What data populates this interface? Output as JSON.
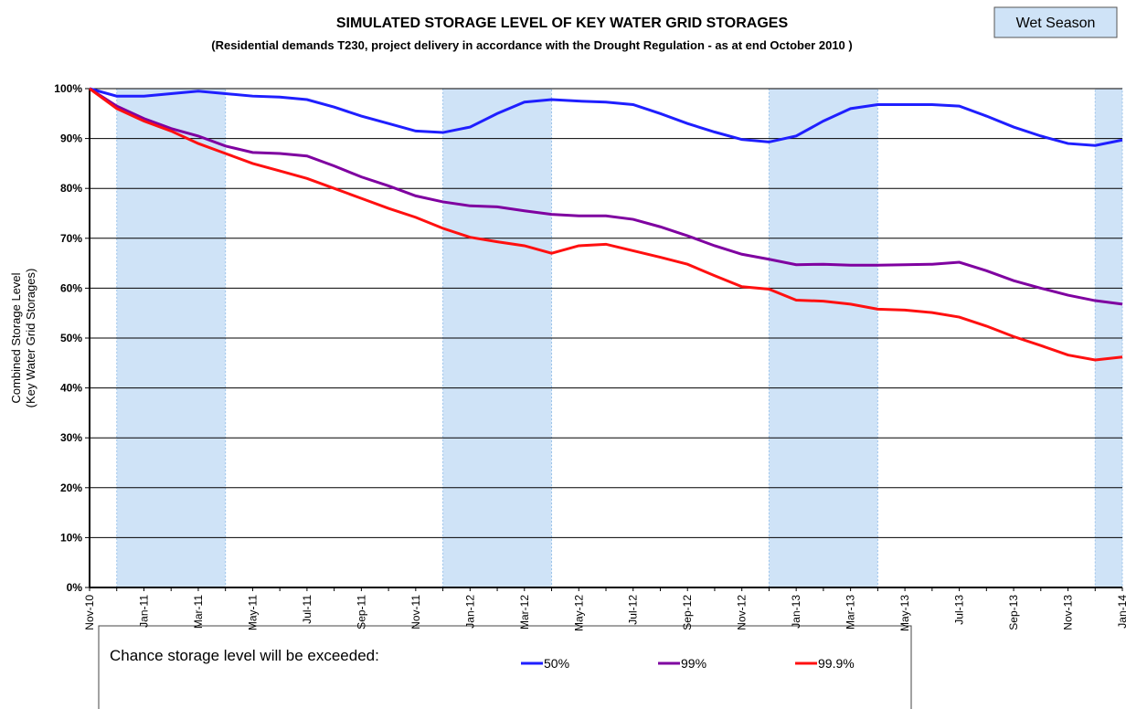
{
  "chart_data": {
    "type": "line",
    "title": "SIMULATED STORAGE LEVEL OF KEY WATER GRID STORAGES",
    "subtitle": "(Residential demands T230,  project delivery in accordance with the Drought Regulation - as at end October 2010 )",
    "ylabel": [
      "Combined Storage Level",
      "(Key Water Grid Storages)"
    ],
    "shade_label": "Wet Season",
    "shade_color": "#cfe3f7",
    "shaded_periods": [
      [
        1,
        5
      ],
      [
        13,
        17
      ],
      [
        25,
        29
      ],
      [
        37,
        38
      ]
    ],
    "legend_title": "Chance storage level will be exceeded:",
    "categories": [
      "Nov-10",
      null,
      "Jan-11",
      null,
      "Mar-11",
      null,
      "May-11",
      null,
      "Jul-11",
      null,
      "Sep-11",
      null,
      "Nov-11",
      null,
      "Jan-12",
      null,
      "Mar-12",
      null,
      "May-12",
      null,
      "Jul-12",
      null,
      "Sep-12",
      null,
      "Nov-12",
      null,
      "Jan-13",
      null,
      "Mar-13",
      null,
      "May-13",
      null,
      "Jul-13",
      null,
      "Sep-13",
      null,
      "Nov-13",
      null,
      "Jan-14"
    ],
    "series": [
      {
        "name": "50%",
        "color": "#1f1fff",
        "values": [
          100,
          98.5,
          98.5,
          99,
          99.5,
          99,
          98.5,
          98.3,
          97.8,
          96.3,
          94.5,
          93,
          91.5,
          91.2,
          92.3,
          95,
          97.3,
          97.8,
          97.5,
          97.3,
          96.8,
          95,
          93,
          91.3,
          89.8,
          89.3,
          90.5,
          93.5,
          96,
          96.8,
          96.8,
          96.8,
          96.5,
          94.5,
          92.3,
          90.5,
          89,
          88.6,
          89.7
        ]
      },
      {
        "name": "99%",
        "color": "#7f00a0",
        "values": [
          100,
          96.5,
          94,
          92,
          90.5,
          88.5,
          87.2,
          87,
          86.5,
          84.5,
          82.3,
          80.5,
          78.5,
          77.3,
          76.5,
          76.3,
          75.5,
          74.8,
          74.5,
          74.5,
          73.8,
          72.3,
          70.5,
          68.5,
          66.8,
          65.8,
          64.7,
          64.8,
          64.6,
          64.6,
          64.7,
          64.8,
          65.2,
          63.5,
          61.5,
          60,
          58.6,
          57.5,
          56.8
        ]
      },
      {
        "name": "99.9%",
        "color": "#ff1010",
        "values": [
          100,
          96,
          93.5,
          91.5,
          89,
          87,
          85,
          83.5,
          82,
          80,
          78,
          76,
          74.2,
          72,
          70.2,
          69.3,
          68.5,
          67,
          68.5,
          68.8,
          67.5,
          66.2,
          64.8,
          62.5,
          60.3,
          59.8,
          57.6,
          57.4,
          56.8,
          55.8,
          55.6,
          55.1,
          54.2,
          52.4,
          50.3,
          48.5,
          46.6,
          45.6,
          46.2
        ]
      }
    ],
    "ylim": [
      0,
      100
    ],
    "yticks": [
      {
        "value": 0,
        "label": "0%"
      },
      {
        "value": 10,
        "label": "10%"
      },
      {
        "value": 20,
        "label": "20%"
      },
      {
        "value": 30,
        "label": "30%"
      },
      {
        "value": 40,
        "label": "40%"
      },
      {
        "value": 50,
        "label": "50%"
      },
      {
        "value": 60,
        "label": "60%"
      },
      {
        "value": 70,
        "label": "70%"
      },
      {
        "value": 80,
        "label": "80%"
      },
      {
        "value": 90,
        "label": "90%"
      },
      {
        "value": 100,
        "label": "100%"
      }
    ],
    "grid": true
  }
}
